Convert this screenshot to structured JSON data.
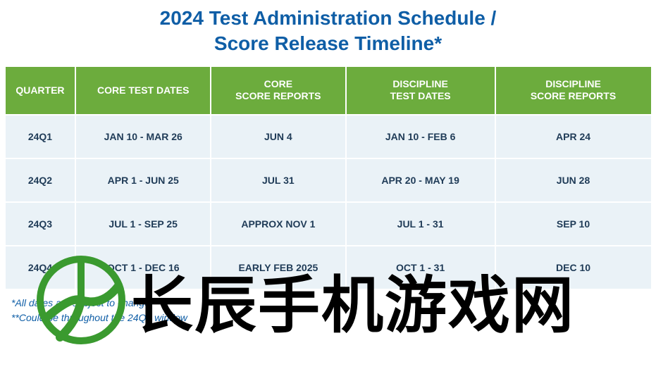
{
  "title_line1": "2024 Test Administration Schedule /",
  "title_line2": "Score Release Timeline*",
  "headers": {
    "quarter": "QUARTER",
    "core_dates": "CORE TEST DATES",
    "core_reports": "CORE\nSCORE REPORTS",
    "disc_dates": "DISCIPLINE\nTEST DATES",
    "disc_reports": "DISCIPLINE\nSCORE REPORTS"
  },
  "rows": [
    {
      "q": "24Q1",
      "core_dates": "JAN 10 - MAR 26",
      "core_reports": "JUN 4",
      "disc_dates": "JAN 10 - FEB 6",
      "disc_reports": "APR 24"
    },
    {
      "q": "24Q2",
      "core_dates": "APR 1 - JUN 25",
      "core_reports": "JUL 31",
      "disc_dates": "APR 20 - MAY 19",
      "disc_reports": "JUN 28"
    },
    {
      "q": "24Q3",
      "core_dates": "JUL 1 - SEP 25",
      "core_reports": "APPROX NOV 1",
      "disc_dates": "JUL 1 - 31",
      "disc_reports": "SEP 10"
    },
    {
      "q": "24Q4",
      "core_dates": "OCT 1 - DEC 16",
      "core_reports": "EARLY FEB 2025",
      "disc_dates": "OCT 1 - 31",
      "disc_reports": "DEC 10"
    }
  ],
  "footnotes": {
    "a": "*All dates are subject to change",
    "b": "**Could be throughout the 24Q4 window"
  },
  "watermark": {
    "text": "长辰手机游戏网",
    "logo_stroke": "#3a9a2f",
    "logo_stroke_width": 10
  },
  "colors": {
    "title": "#0f5ea6",
    "header_bg": "#6cac3d",
    "header_fg": "#ffffff",
    "cell_bg": "#eaf2f7",
    "cell_fg": "#1f3b57",
    "footnote": "#0f5ea6",
    "wm_text": "#000000"
  }
}
